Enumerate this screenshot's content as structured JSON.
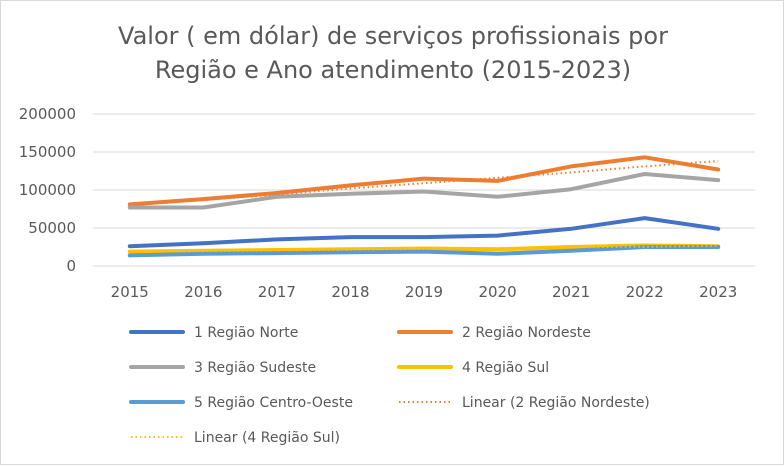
{
  "chart_data": {
    "type": "line",
    "title_lines": [
      "Valor ( em dólar) de serviços profissionais por",
      "Região e Ano atendimento (2015-2023)"
    ],
    "xlabel": "",
    "ylabel": "",
    "ylim": [
      0,
      200000
    ],
    "yticks": [
      "0",
      "50000",
      "100000",
      "150000",
      "200000"
    ],
    "grid": true,
    "legend_position": "bottom",
    "categories": [
      "2015",
      "2016",
      "2017",
      "2018",
      "2019",
      "2020",
      "2021",
      "2022",
      "2023"
    ],
    "series": [
      {
        "name": "1 Região Norte",
        "color": "#4472C4",
        "style": "solid",
        "values": [
          26000,
          30000,
          35000,
          38000,
          38000,
          40000,
          49000,
          63000,
          49000
        ]
      },
      {
        "name": "2 Região Nordeste",
        "color": "#ED7D31",
        "style": "solid",
        "values": [
          81000,
          88000,
          96000,
          106000,
          115000,
          112000,
          131000,
          143000,
          127000
        ]
      },
      {
        "name": "3 Região Sudeste",
        "color": "#A5A5A5",
        "style": "solid",
        "values": [
          77000,
          77000,
          91000,
          95000,
          98000,
          91000,
          101000,
          121000,
          113000
        ]
      },
      {
        "name": "4 Região Sul",
        "color": "#FFC000",
        "style": "solid",
        "values": [
          19000,
          20000,
          21000,
          22000,
          23000,
          22000,
          25000,
          27000,
          26000
        ]
      },
      {
        "name": "5 Região Centro-Oeste",
        "color": "#5B9BD5",
        "style": "solid",
        "values": [
          14000,
          16000,
          17000,
          18000,
          19000,
          16000,
          20000,
          25000,
          25000
        ]
      },
      {
        "name": "Linear (2 Região Nordeste)",
        "color": "#ED7D31",
        "style": "dotted",
        "values": [
          80000,
          87000,
          94000,
          102000,
          109000,
          116000,
          123000,
          131000,
          138000
        ]
      },
      {
        "name": "Linear (4 Região Sul)",
        "color": "#FFC000",
        "style": "dotted",
        "values": [
          18500,
          19500,
          20500,
          21500,
          22500,
          23500,
          24500,
          25500,
          26500
        ]
      }
    ]
  }
}
